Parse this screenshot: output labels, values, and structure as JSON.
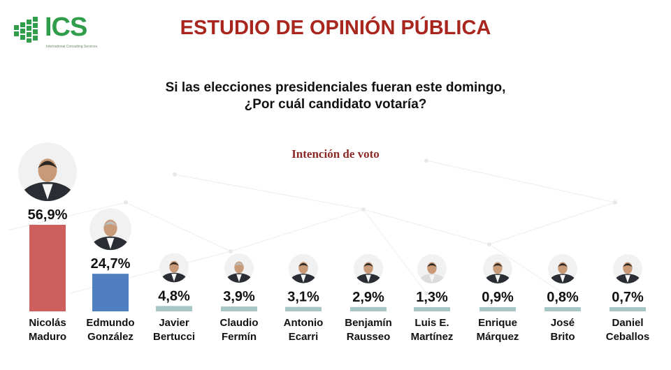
{
  "header": {
    "logo_text": "ICS",
    "logo_subtitle": "International Consulting Services",
    "title": "ESTUDIO DE OPINIÓN PÚBLICA"
  },
  "question": {
    "line1": "Si las elecciones presidenciales fueran este domingo,",
    "line2": "¿Por cuál candidato votaría?"
  },
  "colors": {
    "title": "#a8261d",
    "bar_maduro": "#cd5f5f",
    "bar_gonzalez": "#4f7fc0",
    "bar_others": "#a7c7c7"
  },
  "chart_data": {
    "type": "bar",
    "title": "Intención de voto",
    "unit": "%",
    "categories": [
      [
        "Nicolás",
        "Maduro"
      ],
      [
        "Edmundo",
        "González"
      ],
      [
        "Javier",
        "Bertucci"
      ],
      [
        "Claudio",
        "Fermín"
      ],
      [
        "Antonio",
        "Ecarri"
      ],
      [
        "Benjamín",
        "Rausseo"
      ],
      [
        "Luis E.",
        "Martínez"
      ],
      [
        "Enrique",
        "Márquez"
      ],
      [
        "José",
        "Brito"
      ],
      [
        "Daniel",
        "Ceballos"
      ]
    ],
    "values": [
      56.9,
      24.7,
      4.8,
      3.9,
      3.1,
      2.9,
      1.3,
      0.9,
      0.8,
      0.7
    ],
    "value_labels": [
      "56,9%",
      "24,7%",
      "4,8%",
      "3,9%",
      "3,1%",
      "2,9%",
      "1,3%",
      "0,9%",
      "0,8%",
      "0,7%"
    ],
    "ylim": [
      0,
      60
    ],
    "grid": false,
    "legend": "none"
  }
}
